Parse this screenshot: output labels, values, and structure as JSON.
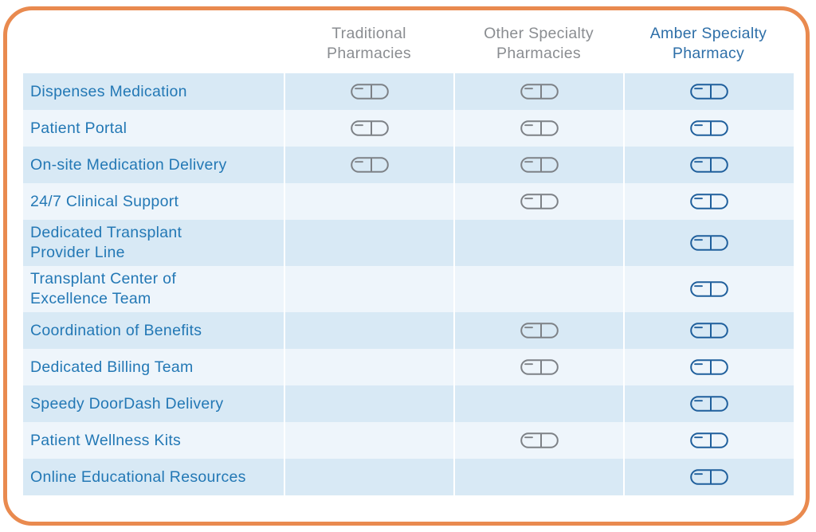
{
  "columns": [
    {
      "line1": "Traditional",
      "line2": "Pharmacies"
    },
    {
      "line1": "Other Specialty",
      "line2": "Pharmacies"
    },
    {
      "line1": "Amber Specialty",
      "line2": "Pharmacy"
    }
  ],
  "colors": {
    "border": "#e98a4f",
    "row_dark": "#d8e9f5",
    "row_light": "#eef5fb",
    "label_text": "#2378b5",
    "gray_icon": "#7d8186",
    "blue_icon": "#1f5f9c"
  },
  "icon_name": "capsule-icon",
  "rows": [
    {
      "label": "Dispenses Medication",
      "marks": [
        true,
        true,
        true
      ]
    },
    {
      "label": "Patient Portal",
      "marks": [
        true,
        true,
        true
      ]
    },
    {
      "label": "On-site Medication Delivery",
      "marks": [
        true,
        true,
        true
      ]
    },
    {
      "label": "24/7 Clinical Support",
      "marks": [
        false,
        true,
        true
      ]
    },
    {
      "label": "Dedicated Transplant\nProvider Line",
      "marks": [
        false,
        false,
        true
      ]
    },
    {
      "label": "Transplant Center of\nExcellence Team",
      "marks": [
        false,
        false,
        true
      ]
    },
    {
      "label": "Coordination of Benefits",
      "marks": [
        false,
        true,
        true
      ]
    },
    {
      "label": "Dedicated Billing Team",
      "marks": [
        false,
        true,
        true
      ]
    },
    {
      "label": "Speedy DoorDash Delivery",
      "marks": [
        false,
        false,
        true
      ]
    },
    {
      "label": "Patient Wellness Kits",
      "marks": [
        false,
        true,
        true
      ]
    },
    {
      "label": "Online Educational Resources",
      "marks": [
        false,
        false,
        true
      ]
    }
  ]
}
